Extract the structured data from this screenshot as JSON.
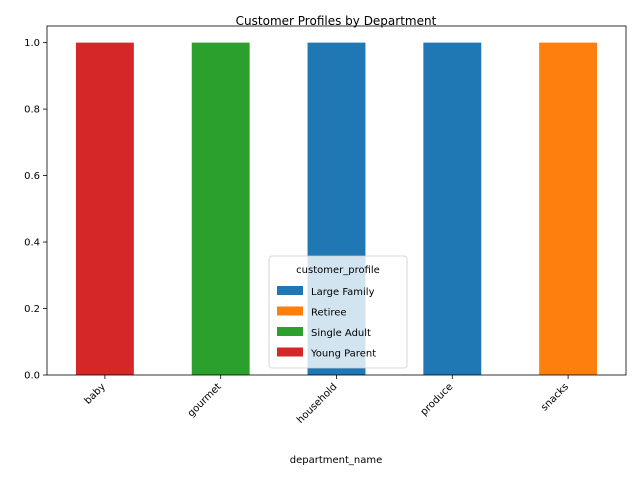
{
  "chart_data": {
    "type": "bar",
    "stacked": true,
    "title": "Customer Profiles by Department",
    "xlabel": "department_name",
    "ylabel": "",
    "categories": [
      "baby",
      "gourmet",
      "household",
      "produce",
      "snacks"
    ],
    "ylim": [
      0,
      1.05
    ],
    "yticks": [
      "0.0",
      "0.2",
      "0.4",
      "0.6",
      "0.8",
      "1.0"
    ],
    "grid": false,
    "legend": {
      "title": "customer_profile",
      "placement": "lower center"
    },
    "series": [
      {
        "name": "Large Family",
        "color": "#1f77b4",
        "values": [
          0,
          0,
          1,
          1,
          0
        ]
      },
      {
        "name": "Retiree",
        "color": "#ff7f0e",
        "values": [
          0,
          0,
          0,
          0,
          1
        ]
      },
      {
        "name": "Single Adult",
        "color": "#2ca02c",
        "values": [
          0,
          1,
          0,
          0,
          0
        ]
      },
      {
        "name": "Young Parent",
        "color": "#d62728",
        "values": [
          1,
          0,
          0,
          0,
          0
        ]
      }
    ]
  }
}
